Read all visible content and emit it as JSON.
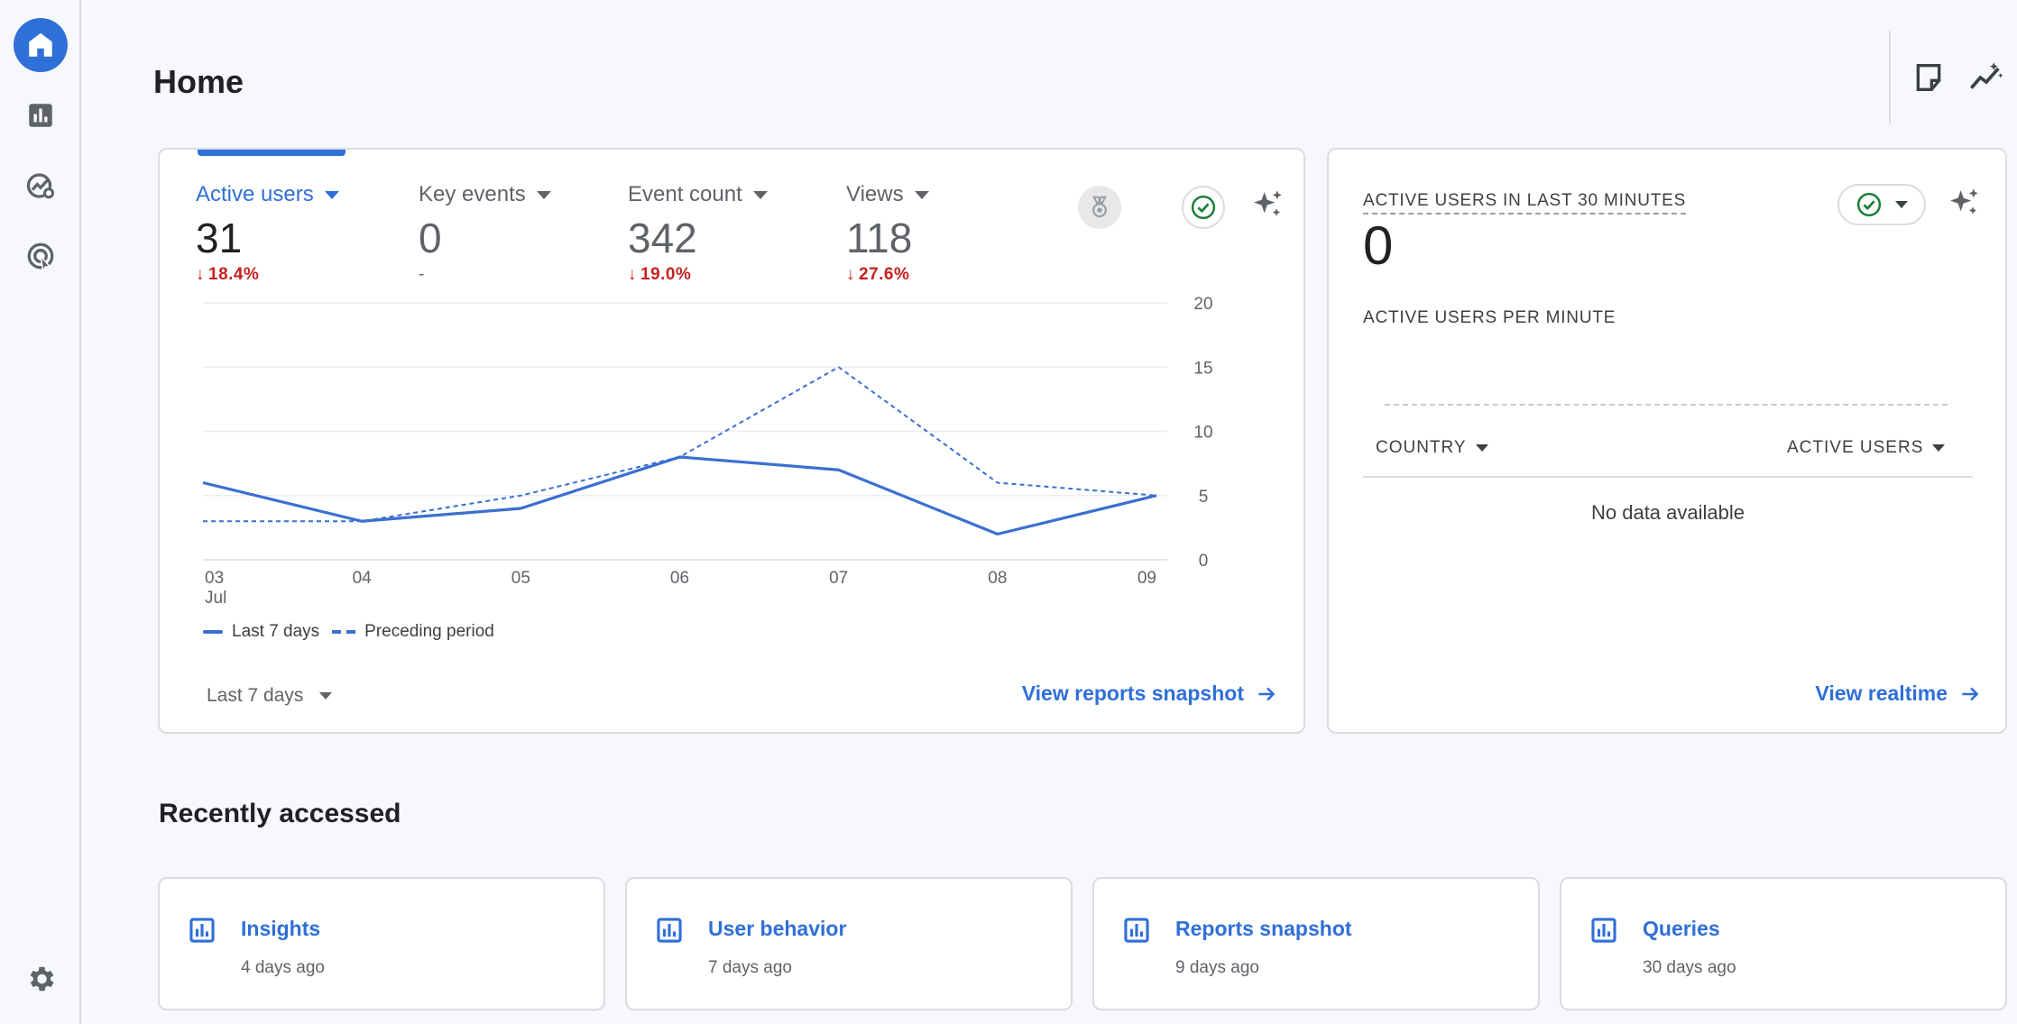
{
  "page": {
    "title": "Home"
  },
  "rail": {
    "items": [
      {
        "name": "home",
        "icon": "home-icon"
      },
      {
        "name": "reports",
        "icon": "bar-chart-icon"
      },
      {
        "name": "explore",
        "icon": "explore-icon"
      },
      {
        "name": "advertising",
        "icon": "advertising-icon"
      }
    ],
    "settings_icon": "gear-icon"
  },
  "toolbar": {
    "icons": [
      "notes-icon",
      "insights-icon"
    ]
  },
  "overview": {
    "metrics": [
      {
        "label": "Active users",
        "value": "31",
        "change": "18.4%",
        "direction": "down"
      },
      {
        "label": "Key events",
        "value": "0",
        "change": "-",
        "direction": "none"
      },
      {
        "label": "Event count",
        "value": "342",
        "change": "19.0%",
        "direction": "down"
      },
      {
        "label": "Views",
        "value": "118",
        "change": "27.6%",
        "direction": "down"
      }
    ],
    "legend": {
      "current": "Last 7 days",
      "previous": "Preceding period"
    },
    "date_range": "Last 7 days",
    "view_link": "View reports snapshot",
    "colors": {
      "accent": "#2f6fd8",
      "line": "#3b6fd1",
      "decline": "#c5221f",
      "check": "#188038"
    }
  },
  "chart_data": {
    "type": "line",
    "x": [
      "03",
      "04",
      "05",
      "06",
      "07",
      "08",
      "09"
    ],
    "x_sublabel": "Jul",
    "series": [
      {
        "name": "Last 7 days",
        "style": "solid",
        "values": [
          6,
          3,
          4,
          8,
          7,
          2,
          5
        ]
      },
      {
        "name": "Preceding period",
        "style": "dashed",
        "values": [
          3,
          3,
          5,
          8,
          15,
          6,
          5
        ]
      }
    ],
    "y_ticks": [
      0,
      5,
      10,
      15,
      20
    ],
    "ylim": [
      0,
      20
    ],
    "grid": true,
    "y_axis_side": "right",
    "legend": "bottom-left"
  },
  "realtime": {
    "title": "ACTIVE USERS IN LAST 30 MINUTES",
    "value": "0",
    "subtitle": "ACTIVE USERS PER MINUTE",
    "col_country": "COUNTRY",
    "col_users": "ACTIVE USERS",
    "empty": "No data available",
    "link": "View realtime"
  },
  "recent": {
    "title": "Recently accessed",
    "items": [
      {
        "title": "Insights",
        "time": "4 days ago"
      },
      {
        "title": "User behavior",
        "time": "7 days ago"
      },
      {
        "title": "Reports snapshot",
        "time": "9 days ago"
      },
      {
        "title": "Queries",
        "time": "30 days ago"
      }
    ]
  }
}
